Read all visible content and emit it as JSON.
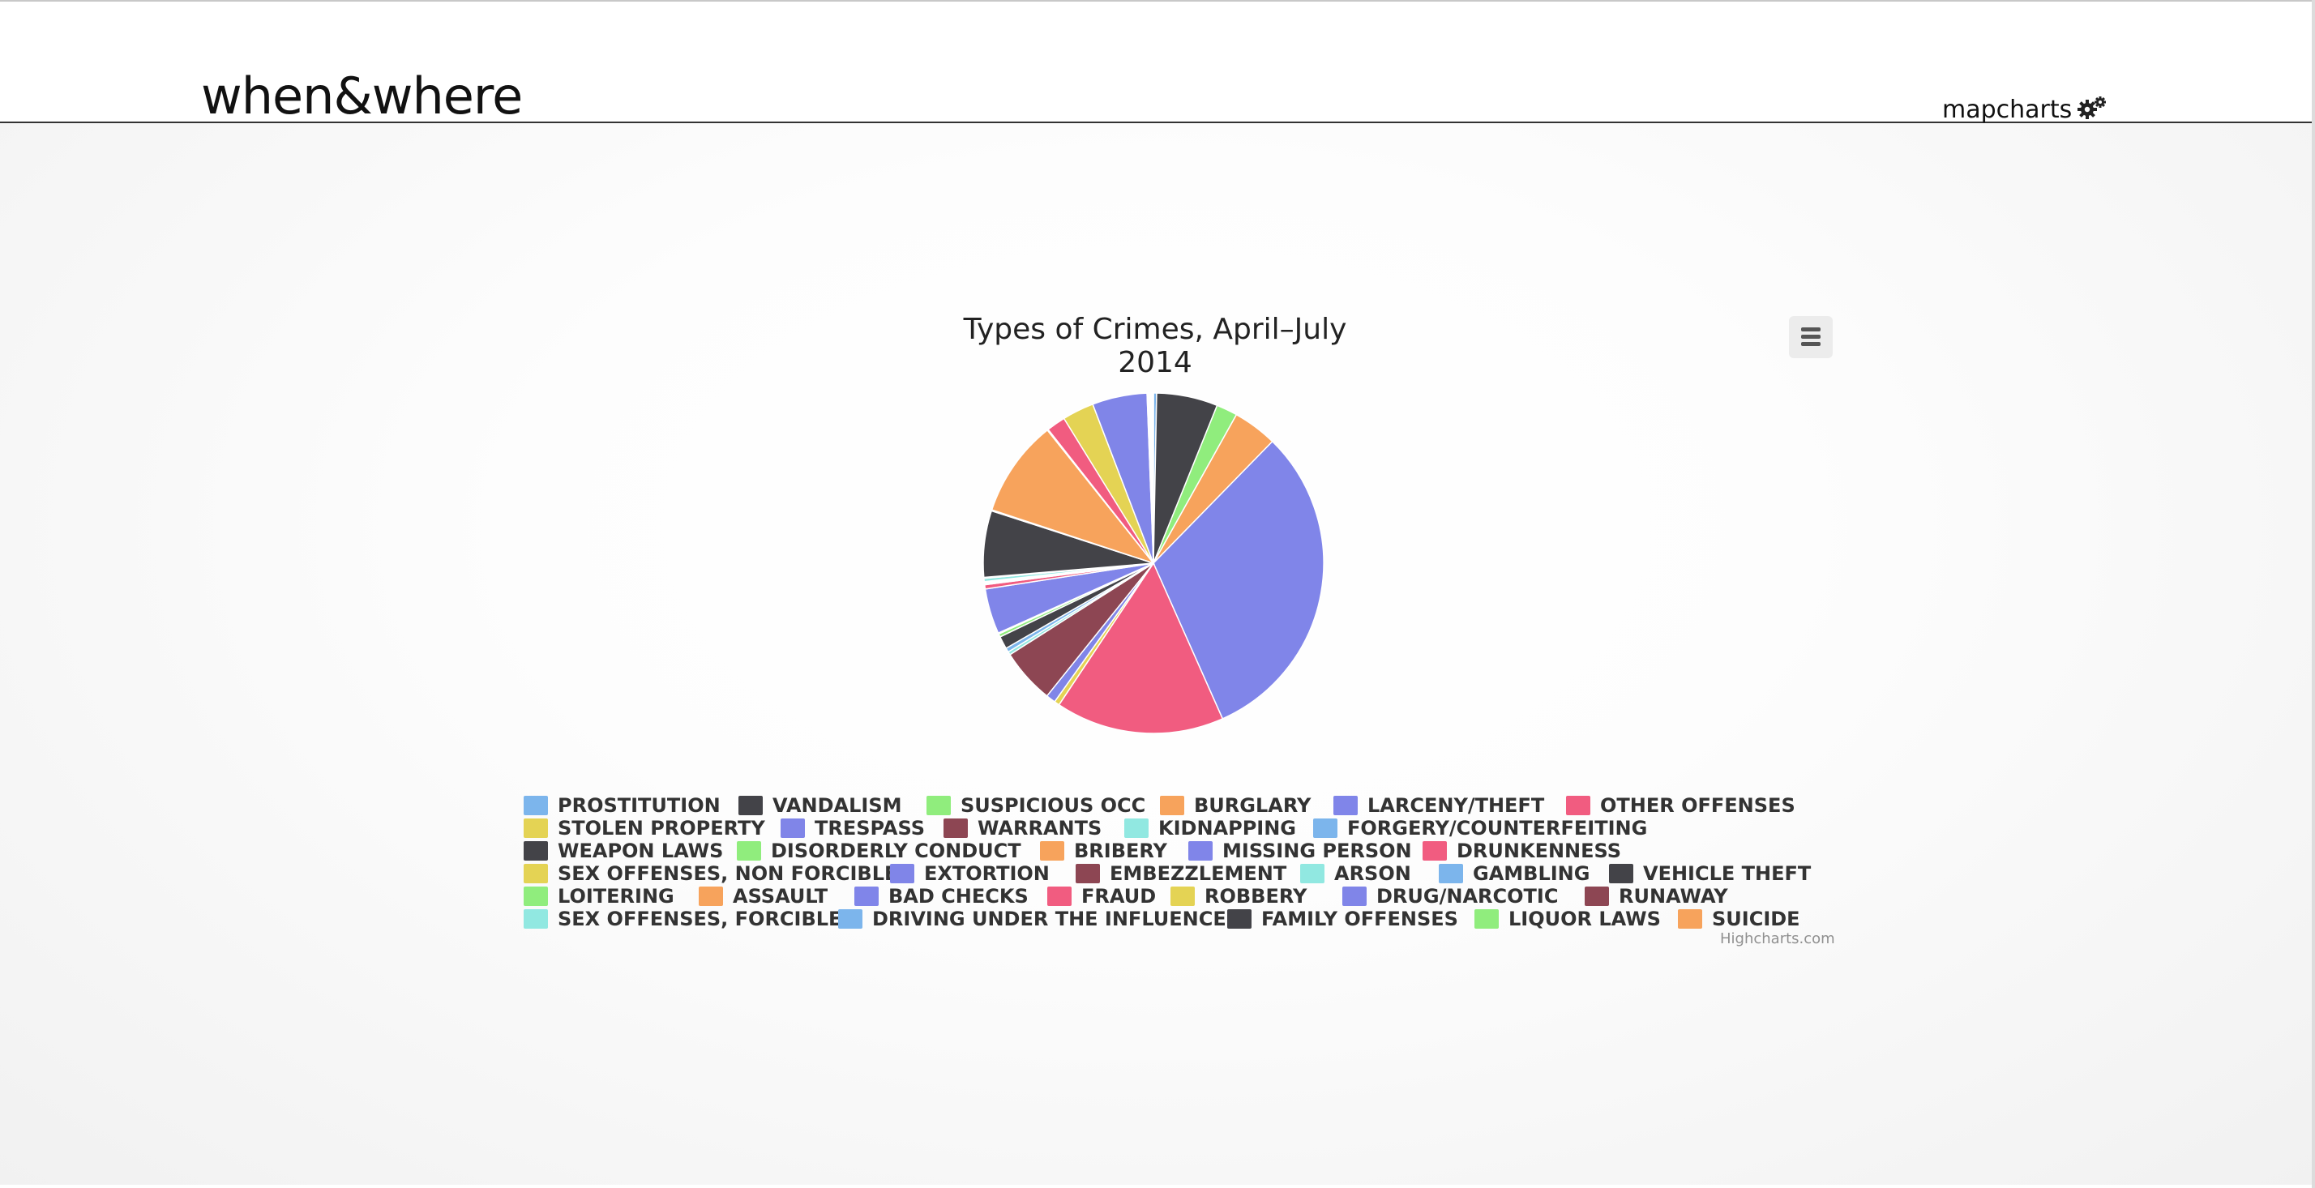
{
  "header": {
    "brand": "when&where",
    "nav_label": "mapcharts"
  },
  "icons": {
    "nav": "gears-icon",
    "menu": "hamburger-menu-icon"
  },
  "credits": "Highcharts.com",
  "chart_data": {
    "type": "pie",
    "title": "Types of Crimes, April–July 2014",
    "legend_placement": "bottom",
    "categories": [
      "PROSTITUTION",
      "VANDALISM",
      "SUSPICIOUS OCC",
      "BURGLARY",
      "LARCENY/THEFT",
      "OTHER OFFENSES",
      "STOLEN PROPERTY",
      "TRESPASS",
      "WARRANTS",
      "KIDNAPPING",
      "FORGERY/COUNTERFEITING",
      "WEAPON LAWS",
      "DISORDERLY CONDUCT",
      "BRIBERY",
      "MISSING PERSON",
      "DRUNKENNESS",
      "SEX OFFENSES, NON FORCIBLE",
      "EXTORTION",
      "EMBEZZLEMENT",
      "ARSON",
      "GAMBLING",
      "VEHICLE THEFT",
      "LOITERING",
      "ASSAULT",
      "BAD CHECKS",
      "FRAUD",
      "ROBBERY",
      "DRUG/NARCOTIC",
      "RUNAWAY",
      "SEX OFFENSES, FORCIBLE",
      "DRIVING UNDER THE INFLUENCE",
      "FAMILY OFFENSES",
      "LIQUOR LAWS",
      "SUICIDE"
    ],
    "values": [
      0.3,
      5.8,
      2.0,
      4.2,
      31.0,
      16.0,
      0.5,
      0.9,
      5.2,
      0.3,
      0.4,
      1.2,
      0.3,
      0.1,
      4.3,
      0.4,
      0.1,
      0.1,
      0.1,
      0.3,
      0.1,
      6.3,
      0.1,
      9.2,
      0.1,
      1.8,
      3.0,
      5.2,
      0.1,
      0.1,
      0.1,
      0.1,
      0.1,
      0.1
    ],
    "colors": [
      "#7cb5ec",
      "#434348",
      "#90ed7d",
      "#f7a35c",
      "#8085e9",
      "#f15c80",
      "#e4d354",
      "#8085e8",
      "#8d4653",
      "#91e8e1",
      "#7cb5ec",
      "#434348",
      "#90ed7d",
      "#f7a35c",
      "#8085e9",
      "#f15c80",
      "#e4d354",
      "#8085e8",
      "#8d4653",
      "#91e8e1",
      "#7cb5ec",
      "#434348",
      "#90ed7d",
      "#f7a35c",
      "#8085e9",
      "#f15c80",
      "#e4d354",
      "#8085e8",
      "#8d4653",
      "#91e8e1",
      "#7cb5ec",
      "#434348",
      "#90ed7d",
      "#f7a35c"
    ]
  }
}
